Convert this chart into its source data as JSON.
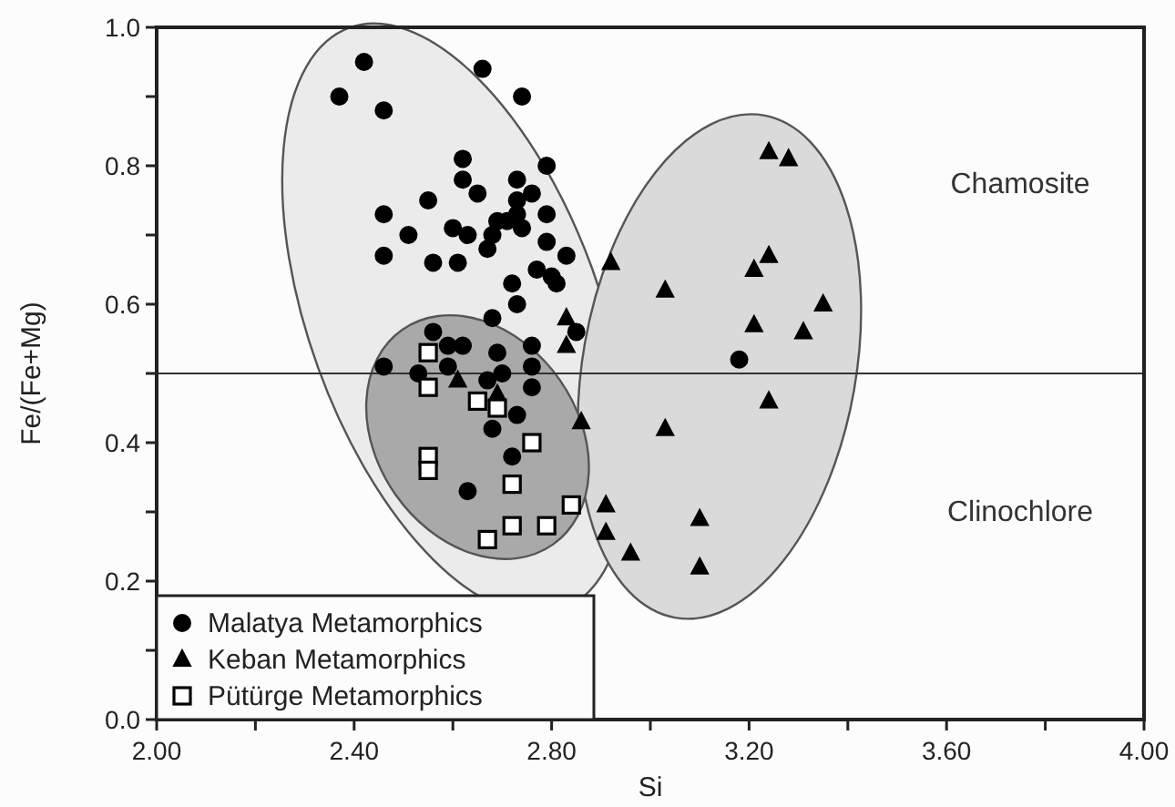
{
  "chart_data": {
    "type": "scatter",
    "xlabel": "Si",
    "ylabel": "Fe/(Fe+Mg)",
    "xlim": [
      2,
      4
    ],
    "ylim": [
      0,
      1
    ],
    "xticks": [
      {
        "value": 2,
        "label": "2.00"
      },
      {
        "value": 2.2,
        "label": null
      },
      {
        "value": 2.4,
        "label": "2.40"
      },
      {
        "value": 2.6,
        "label": null
      },
      {
        "value": 2.8,
        "label": "2.80"
      },
      {
        "value": 3,
        "label": null
      },
      {
        "value": 3.2,
        "label": "3.20"
      },
      {
        "value": 3.4,
        "label": null
      },
      {
        "value": 3.6,
        "label": "3.60"
      },
      {
        "value": 3.8,
        "label": null
      },
      {
        "value": 4,
        "label": "4.00"
      }
    ],
    "yticks": [
      {
        "value": 0,
        "label": "0.0"
      },
      {
        "value": 0.1,
        "label": null
      },
      {
        "value": 0.2,
        "label": "0.2"
      },
      {
        "value": 0.3,
        "label": null
      },
      {
        "value": 0.4,
        "label": "0.4"
      },
      {
        "value": 0.5,
        "label": null
      },
      {
        "value": 0.6,
        "label": "0.6"
      },
      {
        "value": 0.7,
        "label": null
      },
      {
        "value": 0.8,
        "label": "0.8"
      },
      {
        "value": 0.9,
        "label": null
      },
      {
        "value": 1,
        "label": "1.0"
      }
    ],
    "grid": false,
    "legend": "bottom left",
    "ref_lines": [
      {
        "axis": "y",
        "value": 0.5,
        "label": null
      }
    ],
    "annotations": [
      "Chamosite",
      "Clinochlore"
    ],
    "series": [
      {
        "name": "Malatya Metamorphics",
        "color": "#000000",
        "marker": "circle",
        "x": [
          2.42,
          2.66,
          2.37,
          2.74,
          2.46,
          2.62,
          2.79,
          2.62,
          2.73,
          2.65,
          2.73,
          2.76,
          2.55,
          2.46,
          2.79,
          2.73,
          2.71,
          2.69,
          2.51,
          2.6,
          2.63,
          2.74,
          2.68,
          2.67,
          2.79,
          2.46,
          2.56,
          2.61,
          2.83,
          2.77,
          2.8,
          2.81,
          2.72,
          2.73,
          2.68,
          2.85,
          2.56,
          2.76,
          2.59,
          2.62,
          2.69,
          2.59,
          2.46,
          2.53,
          2.7,
          2.76,
          2.67,
          2.76,
          2.73,
          2.68,
          2.72,
          2.63,
          3.18
        ],
        "values": [
          0.95,
          0.94,
          0.9,
          0.9,
          0.88,
          0.81,
          0.8,
          0.78,
          0.78,
          0.76,
          0.75,
          0.76,
          0.75,
          0.73,
          0.73,
          0.73,
          0.72,
          0.72,
          0.7,
          0.71,
          0.7,
          0.71,
          0.7,
          0.68,
          0.69,
          0.67,
          0.66,
          0.66,
          0.67,
          0.65,
          0.64,
          0.63,
          0.63,
          0.6,
          0.58,
          0.56,
          0.56,
          0.54,
          0.54,
          0.54,
          0.53,
          0.51,
          0.51,
          0.5,
          0.5,
          0.51,
          0.49,
          0.48,
          0.44,
          0.42,
          0.38,
          0.33,
          0.52
        ]
      },
      {
        "name": "Keban Metamorphics",
        "color": "#000000",
        "marker": "triangle",
        "x": [
          2.92,
          2.83,
          2.83,
          2.61,
          2.69,
          2.86,
          2.91,
          2.91,
          2.96,
          3.24,
          3.28,
          3.24,
          3.21,
          3.03,
          3.35,
          3.21,
          3.31,
          3.24,
          3.03,
          3.1,
          3.1
        ],
        "values": [
          0.66,
          0.58,
          0.54,
          0.49,
          0.47,
          0.43,
          0.31,
          0.27,
          0.24,
          0.82,
          0.81,
          0.67,
          0.65,
          0.62,
          0.6,
          0.57,
          0.56,
          0.46,
          0.42,
          0.29,
          0.22
        ]
      },
      {
        "name": "Pütürge Metamorphics",
        "color": "#ffffff",
        "marker": "square",
        "x": [
          2.55,
          2.55,
          2.65,
          2.69,
          2.76,
          2.55,
          2.55,
          2.72,
          2.84,
          2.72,
          2.79,
          2.67
        ],
        "values": [
          0.53,
          0.48,
          0.46,
          0.45,
          0.4,
          0.38,
          0.36,
          0.34,
          0.31,
          0.28,
          0.28,
          0.26
        ]
      }
    ]
  }
}
